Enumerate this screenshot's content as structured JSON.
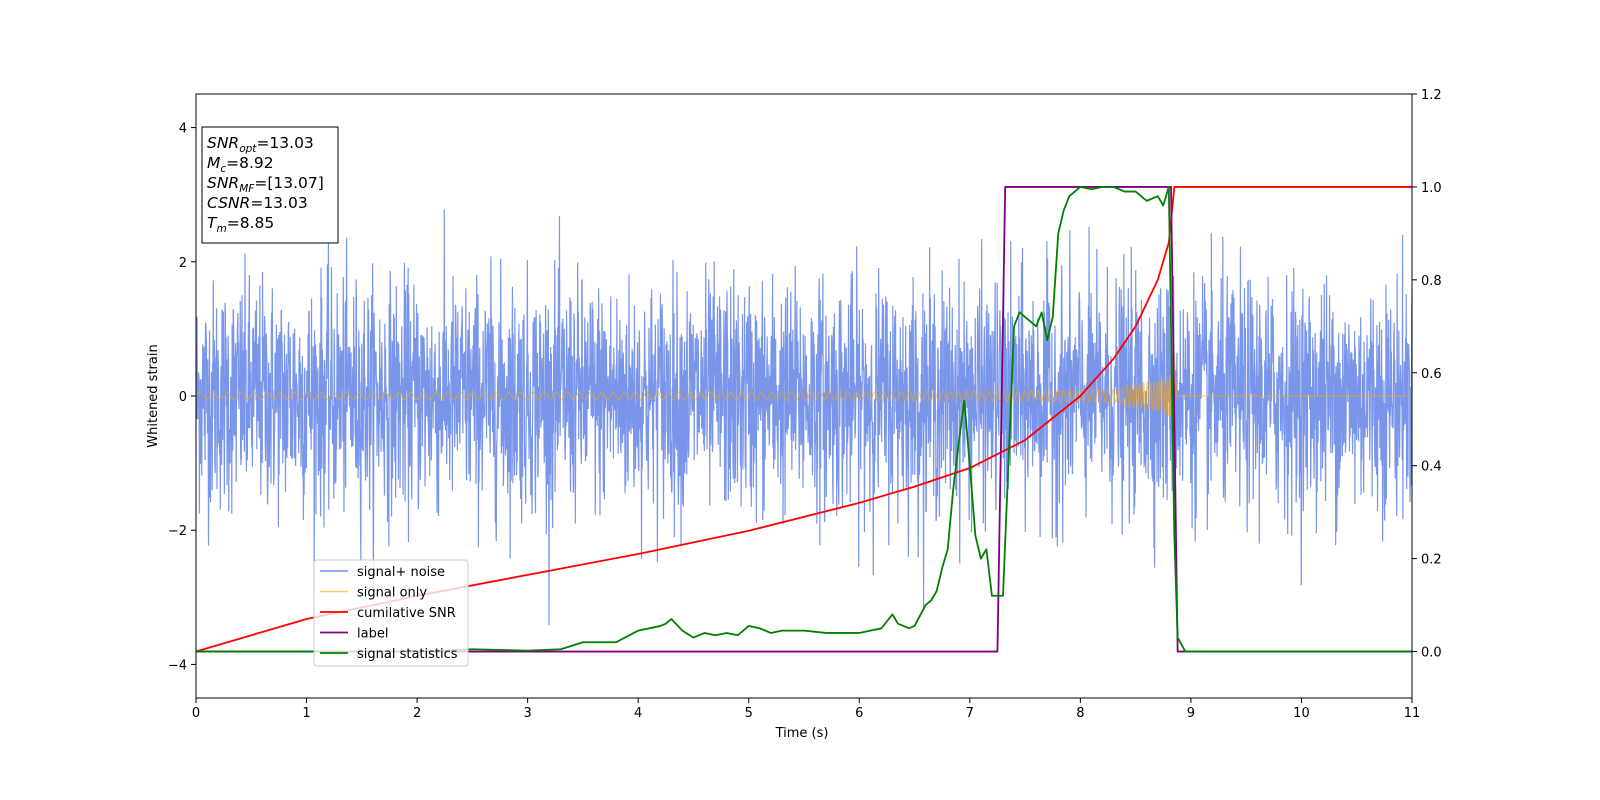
{
  "chart_data": {
    "type": "line",
    "title": "",
    "xlabel": "Time (s)",
    "ylabel": "Whitened strain",
    "xlim": [
      0,
      11
    ],
    "ylim_left": [
      -4.5,
      4.5
    ],
    "ylim_right": [
      -0.1,
      1.2
    ],
    "xticks": [
      "0",
      "1",
      "2",
      "3",
      "4",
      "5",
      "6",
      "7",
      "8",
      "9",
      "10",
      "11"
    ],
    "yticks_left": [
      "−4",
      "−2",
      "0",
      "2",
      "4"
    ],
    "yticks_right": [
      "0.0",
      "0.2",
      "0.4",
      "0.6",
      "0.8",
      "1.0",
      "1.2"
    ],
    "grid": false,
    "legend_position": "lower-left",
    "annotation": {
      "lines": [
        {
          "var": "SNR",
          "sub": "opt",
          "value": "=13.03"
        },
        {
          "var": "M",
          "sub": "c",
          "value": "=8.92"
        },
        {
          "var": "SNR",
          "sub": "MF",
          "value": "=[13.07]"
        },
        {
          "var": "CSNR",
          "sub": "",
          "value": "=13.03"
        },
        {
          "var": "T",
          "sub": "m",
          "value": "=8.85"
        }
      ]
    },
    "series": [
      {
        "name": "signal+ noise",
        "color": "#4169e1",
        "axis": "left",
        "kind": "noise_band",
        "t_start": 0,
        "t_end": 11,
        "std": 0.85
      },
      {
        "name": "signal only",
        "color": "#ffa500",
        "axis": "left",
        "kind": "chirp",
        "t_start": 0,
        "t_merge": 8.85,
        "amp_start": 0.05,
        "amp_end": 1.0
      },
      {
        "name": "cumilative SNR",
        "color": "#ff0000",
        "axis": "right",
        "x": [
          0,
          1,
          2,
          3,
          4,
          5,
          6,
          6.5,
          7,
          7.5,
          8,
          8.3,
          8.5,
          8.7,
          8.8,
          8.85,
          11
        ],
        "y": [
          0.0,
          0.07,
          0.12,
          0.165,
          0.21,
          0.26,
          0.32,
          0.355,
          0.395,
          0.455,
          0.55,
          0.63,
          0.7,
          0.8,
          0.88,
          1.0,
          1.0
        ]
      },
      {
        "name": "label",
        "color": "#800080",
        "axis": "right",
        "x": [
          0,
          7.25,
          7.32,
          8.82,
          8.88,
          11
        ],
        "y": [
          0,
          0,
          1,
          1,
          0,
          0
        ]
      },
      {
        "name": "signal statistics",
        "color": "#008000",
        "axis": "right",
        "x": [
          0,
          2,
          2.5,
          3,
          3.3,
          3.5,
          3.8,
          4,
          4.1,
          4.2,
          4.25,
          4.3,
          4.4,
          4.5,
          4.6,
          4.7,
          4.8,
          4.9,
          5,
          5.1,
          5.2,
          5.3,
          5.5,
          5.7,
          5.8,
          6,
          6.1,
          6.2,
          6.3,
          6.35,
          6.4,
          6.45,
          6.5,
          6.6,
          6.65,
          6.7,
          6.75,
          6.8,
          6.85,
          6.9,
          6.95,
          7.0,
          7.05,
          7.1,
          7.15,
          7.2,
          7.3,
          7.4,
          7.45,
          7.5,
          7.6,
          7.65,
          7.7,
          7.75,
          7.8,
          7.85,
          7.9,
          8.0,
          8.1,
          8.2,
          8.3,
          8.4,
          8.5,
          8.6,
          8.7,
          8.75,
          8.8,
          8.85,
          8.88,
          8.95,
          11
        ],
        "y": [
          0.0,
          0.0,
          0.005,
          0.002,
          0.005,
          0.02,
          0.02,
          0.045,
          0.05,
          0.055,
          0.06,
          0.07,
          0.045,
          0.03,
          0.04,
          0.035,
          0.04,
          0.035,
          0.055,
          0.05,
          0.04,
          0.045,
          0.045,
          0.04,
          0.04,
          0.04,
          0.045,
          0.05,
          0.08,
          0.06,
          0.055,
          0.05,
          0.055,
          0.1,
          0.11,
          0.13,
          0.18,
          0.22,
          0.35,
          0.45,
          0.54,
          0.4,
          0.25,
          0.2,
          0.22,
          0.12,
          0.12,
          0.7,
          0.73,
          0.72,
          0.7,
          0.73,
          0.67,
          0.72,
          0.9,
          0.95,
          0.98,
          1.0,
          0.995,
          1.0,
          1.0,
          0.99,
          0.99,
          0.97,
          0.98,
          0.96,
          1.0,
          0.25,
          0.03,
          0.0,
          0.0
        ]
      }
    ]
  }
}
